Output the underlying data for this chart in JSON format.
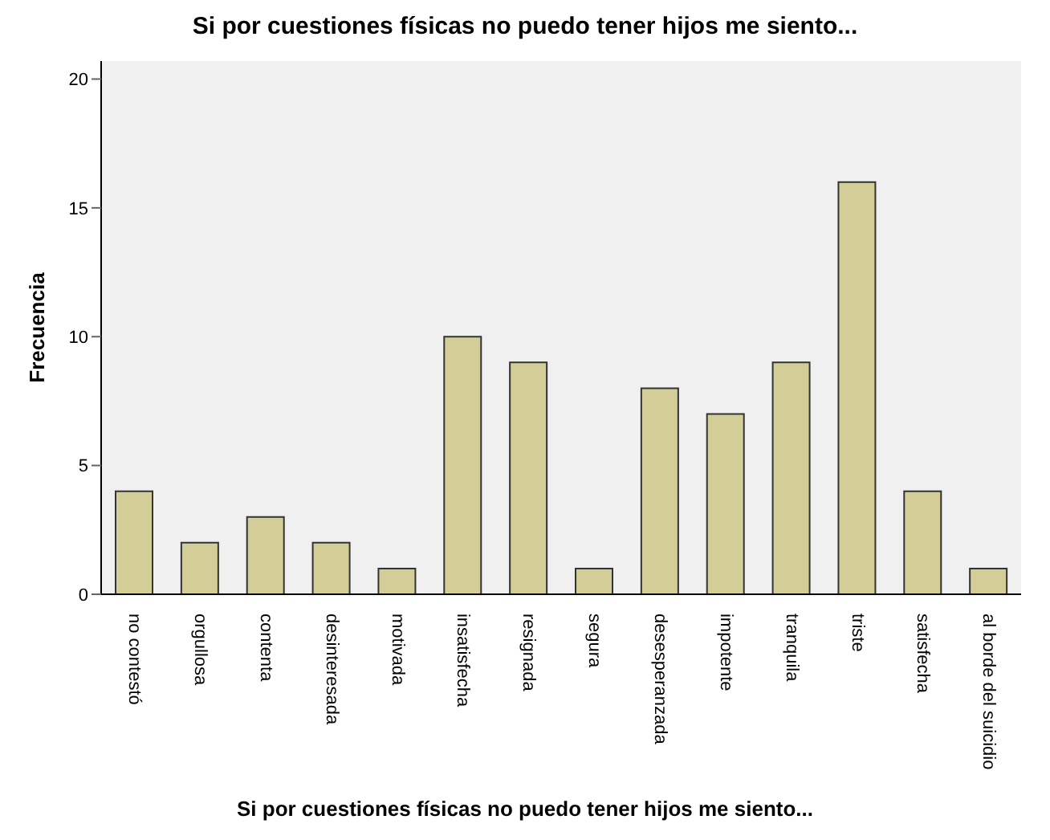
{
  "chart_data": {
    "type": "bar",
    "title": "Si por cuestiones físicas no puedo tener hijos me siento...",
    "xlabel": "Si por cuestiones físicas no puedo tener hijos me siento...",
    "ylabel": "Frecuencia",
    "categories": [
      "no contestó",
      "orgullosa",
      "contenta",
      "desinteresada",
      "motivada",
      "insatisfecha",
      "resignada",
      "segura",
      "desesperanzada",
      "impotente",
      "tranquila",
      "triste",
      "satisfecha",
      "al borde del suicidio"
    ],
    "values": [
      4,
      2,
      3,
      2,
      1,
      10,
      9,
      1,
      8,
      7,
      9,
      16,
      4,
      1
    ],
    "color": "#d3ce97",
    "ylim": [
      0,
      20.7
    ],
    "yticks": [
      0,
      5,
      10,
      15,
      20
    ],
    "grid": false
  }
}
